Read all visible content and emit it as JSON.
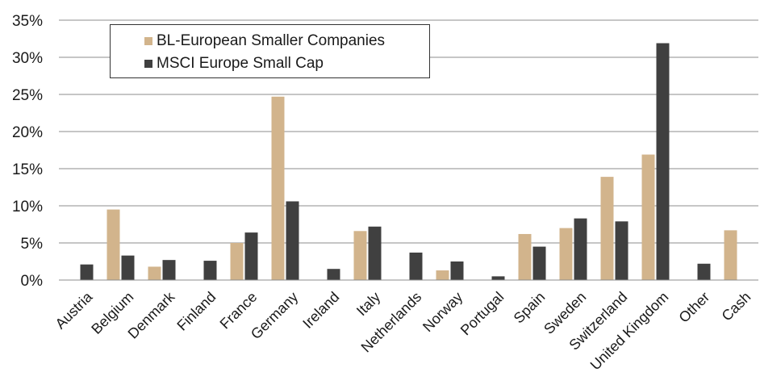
{
  "chart_data": {
    "type": "bar",
    "categories": [
      "Austria",
      "Belgium",
      "Denmark",
      "Finland",
      "France",
      "Germany",
      "Ireland",
      "Italy",
      "Netherlands",
      "Norway",
      "Portugal",
      "Spain",
      "Sweden",
      "Switzerland",
      "United Kingdom",
      "Other",
      "Cash"
    ],
    "series": [
      {
        "name": "BL-European Smaller Companies",
        "color": "#d2b48c",
        "values": [
          0,
          9.5,
          1.8,
          0,
          5.0,
          24.7,
          0,
          6.6,
          0,
          1.3,
          0,
          6.2,
          7.0,
          13.9,
          16.9,
          0,
          6.7
        ]
      },
      {
        "name": "MSCI Europe Small Cap",
        "color": "#404040",
        "values": [
          2.1,
          3.3,
          2.7,
          2.6,
          6.4,
          10.6,
          1.5,
          7.2,
          3.7,
          2.5,
          0.5,
          4.5,
          8.3,
          7.9,
          31.9,
          2.2,
          0
        ]
      }
    ],
    "yticks": [
      "0%",
      "5%",
      "10%",
      "15%",
      "20%",
      "25%",
      "30%",
      "35%"
    ],
    "ylim": [
      0,
      35
    ],
    "ytick_step": 5,
    "grid": true,
    "legend": "top-left",
    "title": "",
    "xlabel": "",
    "ylabel": ""
  }
}
